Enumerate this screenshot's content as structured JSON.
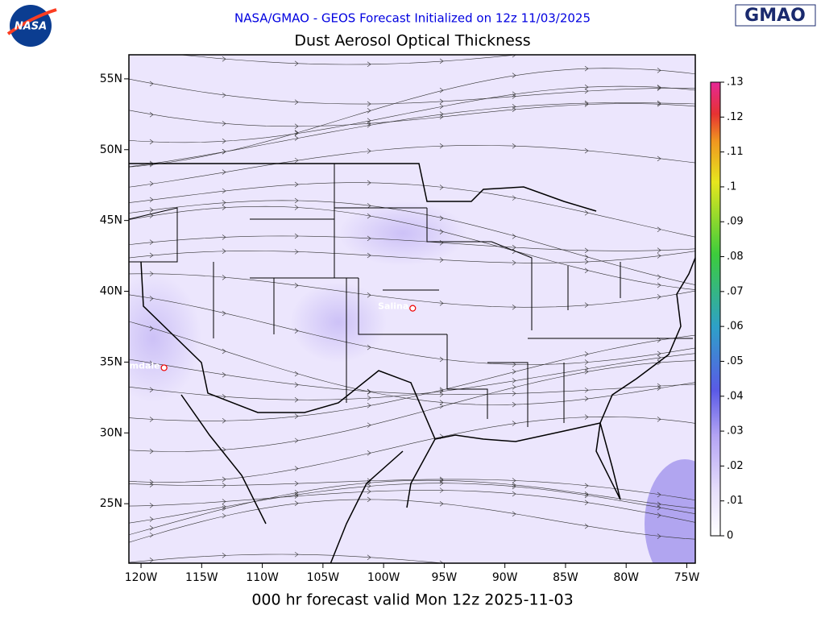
{
  "header": {
    "subtitle": "NASA/GMAO - GEOS Forecast Initialized on 12z 11/03/2025",
    "title": "Dust Aerosol Optical Thickness",
    "footer": "000 hr forecast valid Mon 12z 2025-11-03",
    "logo_left": "NASA",
    "logo_right": "GMAO"
  },
  "map": {
    "lon_range": [
      -121,
      -74.3
    ],
    "lat_range": [
      20.8,
      56.7
    ],
    "lon_ticks": [
      {
        "value": -120,
        "label": "120W"
      },
      {
        "value": -115,
        "label": "115W"
      },
      {
        "value": -110,
        "label": "110W"
      },
      {
        "value": -105,
        "label": "105W"
      },
      {
        "value": -100,
        "label": "100W"
      },
      {
        "value": -95,
        "label": "95W"
      },
      {
        "value": -90,
        "label": "90W"
      },
      {
        "value": -85,
        "label": "85W"
      },
      {
        "value": -80,
        "label": "80W"
      },
      {
        "value": -75,
        "label": "75W"
      }
    ],
    "lat_ticks": [
      {
        "value": 25,
        "label": "25N"
      },
      {
        "value": 30,
        "label": "30N"
      },
      {
        "value": 35,
        "label": "35N"
      },
      {
        "value": 40,
        "label": "40N"
      },
      {
        "value": 45,
        "label": "45N"
      },
      {
        "value": 50,
        "label": "50N"
      },
      {
        "value": 55,
        "label": "55N"
      }
    ],
    "cities": [
      {
        "name": "Salina",
        "lon": -97.6,
        "lat": 38.8
      },
      {
        "name": "Palmdale",
        "lon": -118.1,
        "lat": 34.6
      }
    ]
  },
  "colorbar": {
    "range": [
      0,
      0.13
    ],
    "ticks": [
      0,
      {
        "value": 0.01,
        "label": ".01"
      },
      {
        "value": 0.02,
        "label": ".02"
      },
      {
        "value": 0.03,
        "label": ".03"
      },
      {
        "value": 0.04,
        "label": ".04"
      },
      {
        "value": 0.05,
        "label": ".05"
      },
      {
        "value": 0.06,
        "label": ".06"
      },
      {
        "value": 0.07,
        "label": ".07"
      },
      {
        "value": 0.08,
        "label": ".08"
      },
      {
        "value": 0.09,
        "label": ".09"
      },
      {
        "value": 0.1,
        "label": ".1"
      },
      {
        "value": 0.11,
        "label": ".11"
      },
      {
        "value": 0.12,
        "label": ".12"
      },
      {
        "value": 0.13,
        "label": ".13"
      }
    ]
  }
}
